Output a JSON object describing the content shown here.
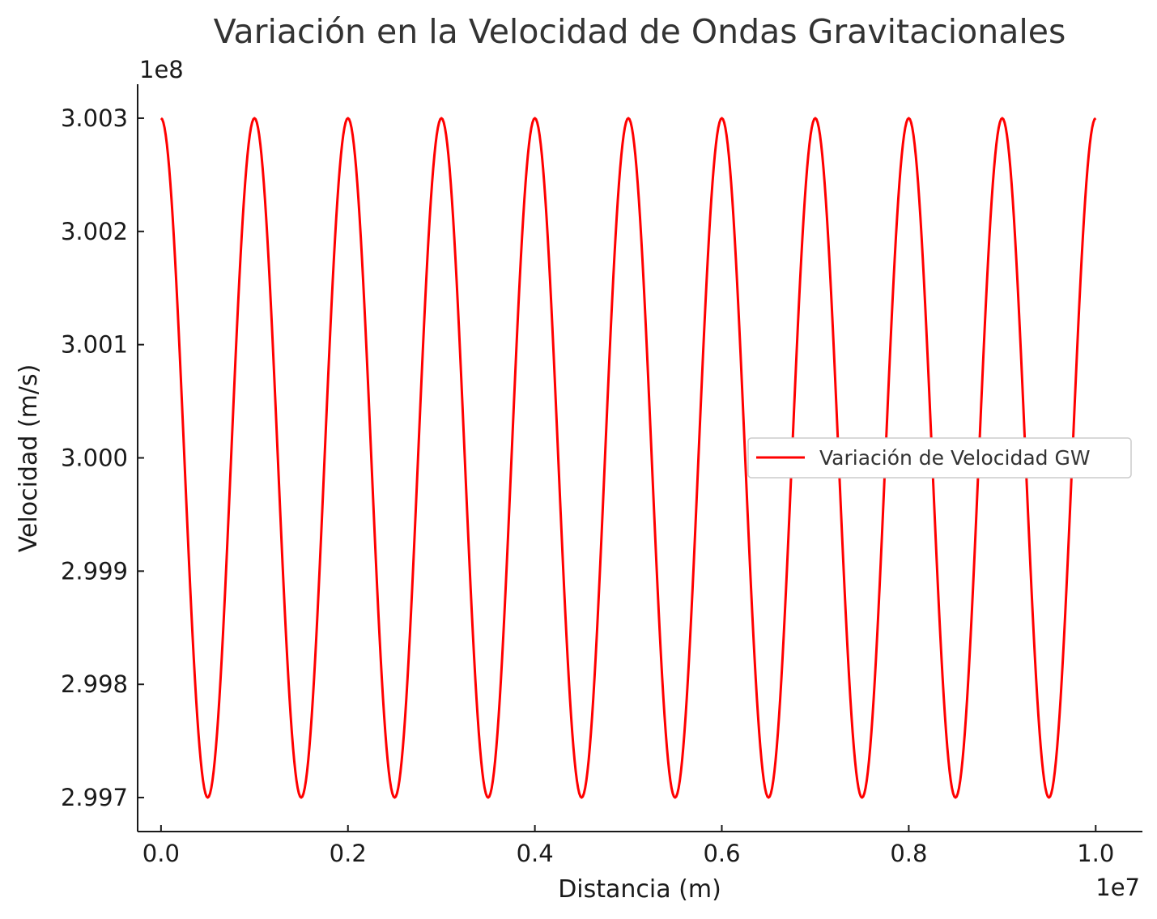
{
  "chart_data": {
    "type": "line",
    "title": "Variación en la Velocidad de Ondas Gravitacionales",
    "xlabel": "Distancia (m)",
    "ylabel": "Velocidad (m/s)",
    "x_offset_label": "1e7",
    "y_offset_label": "1e8",
    "xlim": [
      -0.025,
      1.05
    ],
    "ylim": [
      2.9967,
      3.0033
    ],
    "x_ticks": [
      0.0,
      0.2,
      0.4,
      0.6,
      0.8,
      1.0
    ],
    "x_tick_labels": [
      "0.0",
      "0.2",
      "0.4",
      "0.6",
      "0.8",
      "1.0"
    ],
    "y_ticks": [
      2.997,
      2.998,
      2.999,
      3.0,
      3.001,
      3.002,
      3.003
    ],
    "y_tick_labels": [
      "2.997",
      "2.998",
      "2.999",
      "3.000",
      "3.001",
      "3.002",
      "3.003"
    ],
    "grid": false,
    "legend_position": "center-right",
    "series": [
      {
        "name": "Variación de Velocidad GW",
        "color": "#ff0000",
        "x": [
          0.0,
          0.05,
          0.1,
          0.15,
          0.2,
          0.25,
          0.3,
          0.35,
          0.4,
          0.45,
          0.5,
          0.55,
          0.6,
          0.65,
          0.7,
          0.75,
          0.8,
          0.85,
          0.9,
          0.95,
          1.0
        ],
        "y": [
          3.003,
          2.997,
          3.003,
          2.997,
          3.003,
          2.997,
          3.003,
          2.997,
          3.003,
          2.997,
          3.003,
          2.997,
          3.003,
          2.997,
          3.003,
          2.997,
          3.003,
          2.997,
          3.003,
          2.997,
          3.003
        ]
      }
    ]
  }
}
